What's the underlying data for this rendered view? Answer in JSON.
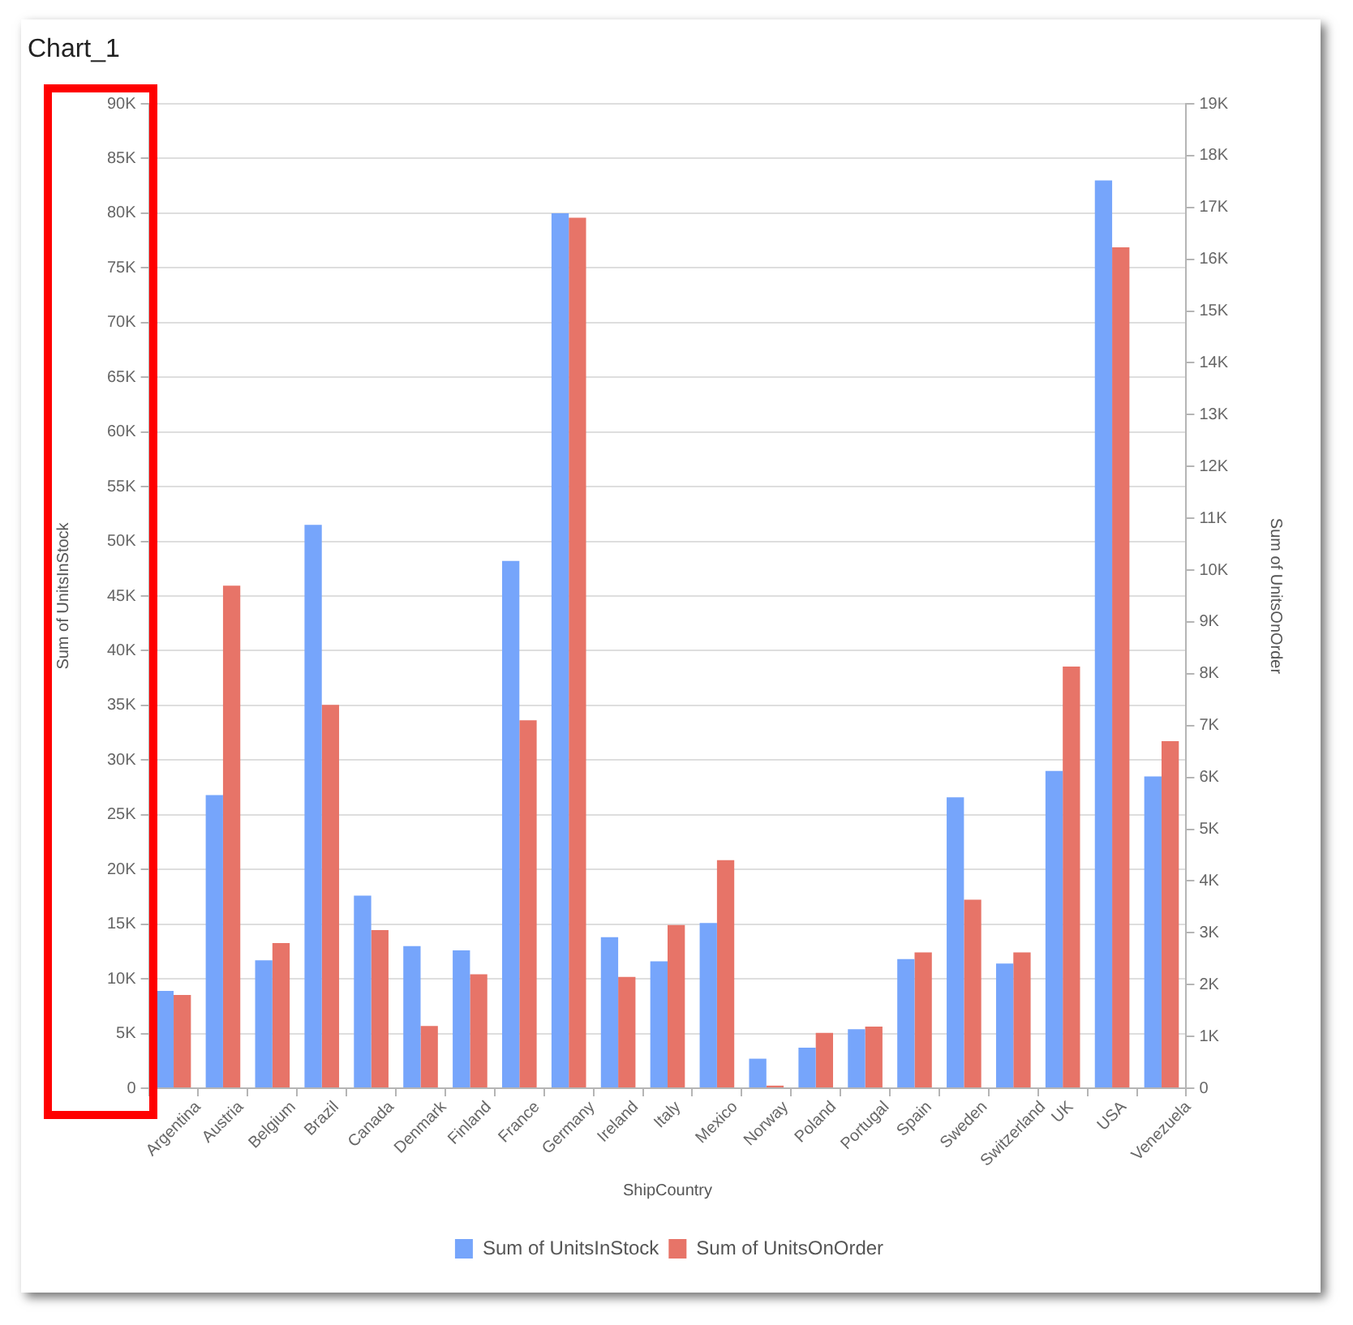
{
  "chart_data": {
    "type": "bar",
    "title": "Chart_1",
    "xlabel": "ShipCountry",
    "ylabel": "Sum of UnitsInStock",
    "y2label": "Sum of UnitsOnOrder",
    "categories": [
      "Argentina",
      "Austria",
      "Belgium",
      "Brazil",
      "Canada",
      "Denmark",
      "Finland",
      "France",
      "Germany",
      "Ireland",
      "Italy",
      "Mexico",
      "Norway",
      "Poland",
      "Portugal",
      "Spain",
      "Sweden",
      "Switzerland",
      "UK",
      "USA",
      "Venezuela"
    ],
    "series": [
      {
        "name": "Sum of UnitsInStock",
        "color": "#76a5fb",
        "values": [
          8900,
          26800,
          11700,
          51500,
          17600,
          13000,
          12600,
          48200,
          80000,
          13800,
          11600,
          15100,
          2700,
          3700,
          5400,
          11800,
          26600,
          11400,
          29000,
          83000,
          28500
        ]
      },
      {
        "name": "Sum of UnitsOnOrder",
        "color": "#e77468",
        "axis": "y2",
        "values": [
          1800,
          9700,
          2800,
          7400,
          3050,
          1200,
          2200,
          7100,
          16800,
          2150,
          3150,
          4400,
          50,
          1070,
          1190,
          2620,
          3640,
          2620,
          8140,
          16230,
          6700
        ]
      }
    ],
    "ylim": [
      0,
      90000
    ],
    "yticks": [
      0,
      {
        "value": 5000,
        "label": "5K"
      },
      {
        "value": 10000,
        "label": "10K"
      },
      {
        "value": 15000,
        "label": "15K"
      },
      {
        "value": 20000,
        "label": "20K"
      },
      {
        "value": 25000,
        "label": "25K"
      },
      {
        "value": 30000,
        "label": "30K"
      },
      {
        "value": 35000,
        "label": "35K"
      },
      {
        "value": 40000,
        "label": "40K"
      },
      {
        "value": 45000,
        "label": "45K"
      },
      {
        "value": 50000,
        "label": "50K"
      },
      {
        "value": 55000,
        "label": "55K"
      },
      {
        "value": 60000,
        "label": "60K"
      },
      {
        "value": 65000,
        "label": "65K"
      },
      {
        "value": 70000,
        "label": "70K"
      },
      {
        "value": 75000,
        "label": "75K"
      },
      {
        "value": 80000,
        "label": "80K"
      },
      {
        "value": 85000,
        "label": "85K"
      },
      {
        "value": 90000,
        "label": "90K"
      }
    ],
    "y2lim": [
      0,
      19000
    ],
    "y2ticks": [
      0,
      {
        "value": 1000,
        "label": "1K"
      },
      {
        "value": 2000,
        "label": "2K"
      },
      {
        "value": 3000,
        "label": "3K"
      },
      {
        "value": 4000,
        "label": "4K"
      },
      {
        "value": 5000,
        "label": "5K"
      },
      {
        "value": 6000,
        "label": "6K"
      },
      {
        "value": 7000,
        "label": "7K"
      },
      {
        "value": 8000,
        "label": "8K"
      },
      {
        "value": 9000,
        "label": "9K"
      },
      {
        "value": 10000,
        "label": "10K"
      },
      {
        "value": 11000,
        "label": "11K"
      },
      {
        "value": 12000,
        "label": "12K"
      },
      {
        "value": 13000,
        "label": "13K"
      },
      {
        "value": 14000,
        "label": "14K"
      },
      {
        "value": 15000,
        "label": "15K"
      },
      {
        "value": 16000,
        "label": "16K"
      },
      {
        "value": 17000,
        "label": "17K"
      },
      {
        "value": 18000,
        "label": "18K"
      },
      {
        "value": 19000,
        "label": "19K"
      }
    ],
    "grid": "y",
    "legend": "bottom"
  }
}
